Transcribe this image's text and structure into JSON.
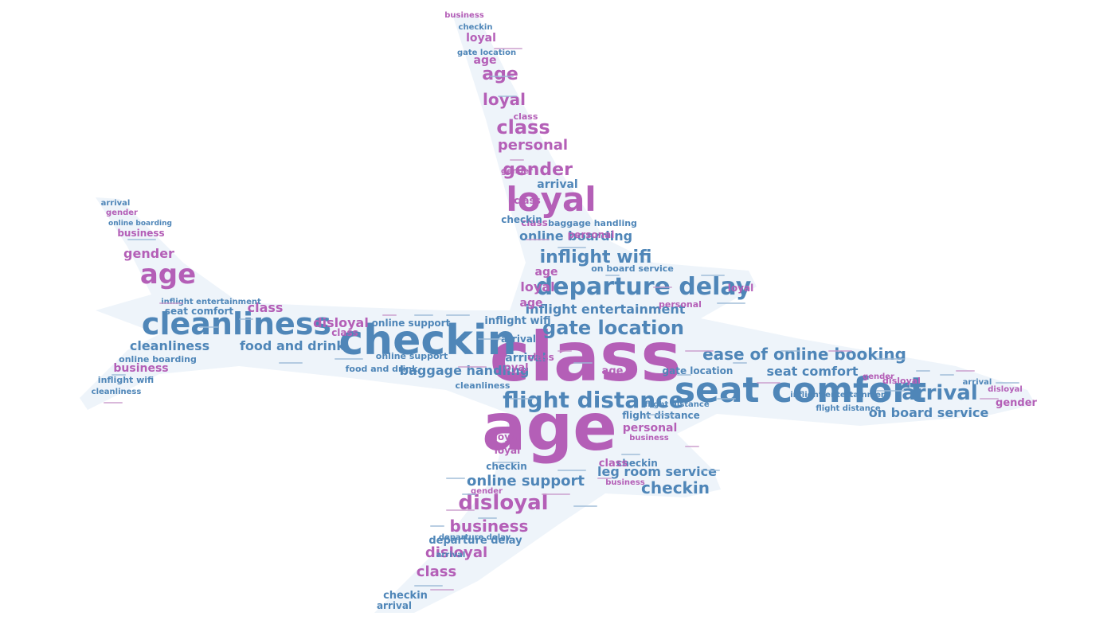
{
  "wordcloud": {
    "shape": "airplane",
    "colors": {
      "blue": "#4f86b8",
      "purple": "#b45fb7",
      "shape_fill": "#eef4fa",
      "background": "#ffffff"
    },
    "words": [
      {
        "text": "class",
        "color": "purple"
      },
      {
        "text": "age",
        "color": "purple"
      },
      {
        "text": "checkin",
        "color": "blue"
      },
      {
        "text": "seat comfort",
        "color": "blue"
      },
      {
        "text": "cleanliness",
        "color": "blue"
      },
      {
        "text": "loyal",
        "color": "purple"
      },
      {
        "text": "departure delay",
        "color": "blue"
      },
      {
        "text": "flight distance",
        "color": "blue"
      },
      {
        "text": "gate location",
        "color": "blue"
      },
      {
        "text": "arrival",
        "color": "blue"
      },
      {
        "text": "disloyal",
        "color": "purple"
      },
      {
        "text": "ease of online booking",
        "color": "blue"
      },
      {
        "text": "inflight wifi",
        "color": "blue"
      },
      {
        "text": "age",
        "color": "purple"
      },
      {
        "text": "class",
        "color": "purple"
      },
      {
        "text": "gender",
        "color": "purple"
      },
      {
        "text": "personal",
        "color": "purple"
      },
      {
        "text": "online support",
        "color": "blue"
      },
      {
        "text": "business",
        "color": "purple"
      },
      {
        "text": "checkin",
        "color": "blue"
      },
      {
        "text": "online boarding",
        "color": "blue"
      },
      {
        "text": "loyal",
        "color": "purple"
      },
      {
        "text": "inflight entertainment",
        "color": "blue"
      },
      {
        "text": "food and drink",
        "color": "blue"
      },
      {
        "text": "on board service",
        "color": "blue"
      },
      {
        "text": "leg room service",
        "color": "blue"
      },
      {
        "text": "seat comfort",
        "color": "blue"
      },
      {
        "text": "baggage handling",
        "color": "blue"
      },
      {
        "text": "cleanliness",
        "color": "blue"
      },
      {
        "text": "class",
        "color": "purple"
      },
      {
        "text": "disloyal",
        "color": "purple"
      },
      {
        "text": "gender",
        "color": "purple"
      },
      {
        "text": "age",
        "color": "purple"
      },
      {
        "text": "arrival",
        "color": "blue"
      },
      {
        "text": "loyal",
        "color": "purple"
      },
      {
        "text": "class",
        "color": "purple"
      },
      {
        "text": "business",
        "color": "purple"
      },
      {
        "text": "disloyal",
        "color": "purple"
      },
      {
        "text": "class",
        "color": "purple"
      },
      {
        "text": "departure delay",
        "color": "blue"
      },
      {
        "text": "gender",
        "color": "purple"
      },
      {
        "text": "arrival",
        "color": "blue"
      },
      {
        "text": "flight distance",
        "color": "blue"
      },
      {
        "text": "inflight wifi",
        "color": "blue"
      },
      {
        "text": "online support",
        "color": "blue"
      },
      {
        "text": "age",
        "color": "purple"
      },
      {
        "text": "loyal",
        "color": "purple"
      },
      {
        "text": "class",
        "color": "purple"
      },
      {
        "text": "cleanliness",
        "color": "blue"
      },
      {
        "text": "seat comfort",
        "color": "blue"
      },
      {
        "text": "business",
        "color": "purple"
      },
      {
        "text": "online boarding",
        "color": "blue"
      },
      {
        "text": "inflight wifi",
        "color": "blue"
      },
      {
        "text": "cleanliness",
        "color": "blue"
      },
      {
        "text": "gender",
        "color": "purple"
      },
      {
        "text": "arrival",
        "color": "blue"
      },
      {
        "text": "business",
        "color": "purple"
      },
      {
        "text": "online support",
        "color": "blue"
      },
      {
        "text": "inflight entertainment",
        "color": "blue"
      },
      {
        "text": "flight distance",
        "color": "blue"
      },
      {
        "text": "loyal",
        "color": "purple"
      },
      {
        "text": "age",
        "color": "purple"
      },
      {
        "text": "class",
        "color": "purple"
      },
      {
        "text": "checkin",
        "color": "blue"
      },
      {
        "text": "personal",
        "color": "purple"
      },
      {
        "text": "loyal",
        "color": "purple"
      },
      {
        "text": "arrival",
        "color": "blue"
      },
      {
        "text": "class",
        "color": "purple"
      },
      {
        "text": "disloyal",
        "color": "purple"
      },
      {
        "text": "gender",
        "color": "purple"
      },
      {
        "text": "checkin",
        "color": "blue"
      },
      {
        "text": "gate location",
        "color": "blue"
      },
      {
        "text": "age",
        "color": "purple"
      },
      {
        "text": "loyal",
        "color": "purple"
      },
      {
        "text": "personal",
        "color": "purple"
      },
      {
        "text": "on board service",
        "color": "blue"
      },
      {
        "text": "food and drink",
        "color": "blue"
      },
      {
        "text": "baggage handling",
        "color": "blue"
      },
      {
        "text": "checkin",
        "color": "blue"
      },
      {
        "text": "arrival",
        "color": "blue"
      },
      {
        "text": "gender",
        "color": "purple"
      },
      {
        "text": "business",
        "color": "purple"
      },
      {
        "text": "inflight entertainment",
        "color": "blue"
      },
      {
        "text": "flight distance",
        "color": "blue"
      },
      {
        "text": "class",
        "color": "purple"
      },
      {
        "text": "loyal",
        "color": "purple"
      },
      {
        "text": "age",
        "color": "purple"
      },
      {
        "text": "personal",
        "color": "purple"
      },
      {
        "text": "checkin",
        "color": "blue"
      },
      {
        "text": "class",
        "color": "purple"
      },
      {
        "text": "disloyal",
        "color": "purple"
      },
      {
        "text": "business",
        "color": "purple"
      },
      {
        "text": "gender",
        "color": "purple"
      },
      {
        "text": "arrival",
        "color": "blue"
      },
      {
        "text": "departure delay",
        "color": "blue"
      },
      {
        "text": "online boarding",
        "color": "blue"
      },
      {
        "text": "gate location",
        "color": "blue"
      },
      {
        "text": "checkin",
        "color": "blue"
      },
      {
        "text": "arrival",
        "color": "blue"
      }
    ]
  }
}
